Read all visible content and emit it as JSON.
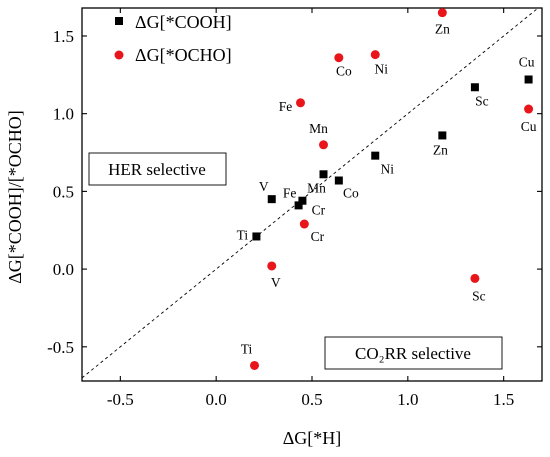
{
  "chart_data": {
    "type": "scatter",
    "xlabel": "ΔG[*H]",
    "ylabel": "ΔG[*COOH]/[*OCHO]",
    "xlim": [
      -0.7,
      1.7
    ],
    "ylim": [
      -0.72,
      1.68
    ],
    "x_ticks": [
      -0.5,
      0.0,
      0.5,
      1.0,
      1.5
    ],
    "x_tick_labels": [
      "-0.5",
      "0.0",
      "0.5",
      "1.0",
      "1.5"
    ],
    "y_ticks": [
      -0.5,
      0.0,
      0.5,
      1.0,
      1.5
    ],
    "y_tick_labels": [
      "-0.5",
      "0.0",
      "0.5",
      "1.0",
      "1.5"
    ],
    "grid": false,
    "legend_position": "top-left",
    "diagonal_reference_line": true,
    "series": [
      {
        "name": "ΔG[*COOH]",
        "marker": "square",
        "color": "#000000",
        "points": [
          {
            "label": "Ti",
            "x": 0.21,
            "y": 0.21
          },
          {
            "label": "V",
            "x": 0.29,
            "y": 0.45
          },
          {
            "label": "Cr",
            "x": 0.45,
            "y": 0.44
          },
          {
            "label": "Fe",
            "x": 0.43,
            "y": 0.41
          },
          {
            "label": "Mn",
            "x": 0.56,
            "y": 0.61
          },
          {
            "label": "Co",
            "x": 0.64,
            "y": 0.57
          },
          {
            "label": "Ni",
            "x": 0.83,
            "y": 0.73
          },
          {
            "label": "Zn",
            "x": 1.18,
            "y": 0.86
          },
          {
            "label": "Sc",
            "x": 1.35,
            "y": 1.17
          },
          {
            "label": "Cu",
            "x": 1.63,
            "y": 1.22
          }
        ]
      },
      {
        "name": "ΔG[*OCHO]",
        "marker": "circle",
        "color": "#e8161a",
        "points": [
          {
            "label": "Ti",
            "x": 0.2,
            "y": -0.62
          },
          {
            "label": "V",
            "x": 0.29,
            "y": 0.02
          },
          {
            "label": "Cr",
            "x": 0.46,
            "y": 0.29
          },
          {
            "label": "Fe",
            "x": 0.44,
            "y": 1.07
          },
          {
            "label": "Mn",
            "x": 0.56,
            "y": 0.8
          },
          {
            "label": "Co",
            "x": 0.64,
            "y": 1.36
          },
          {
            "label": "Ni",
            "x": 0.83,
            "y": 1.38
          },
          {
            "label": "Zn",
            "x": 1.18,
            "y": 1.65
          },
          {
            "label": "Sc",
            "x": 1.35,
            "y": -0.06
          },
          {
            "label": "Cu",
            "x": 1.63,
            "y": 1.03
          }
        ]
      }
    ],
    "region_labels": [
      "HER selective",
      "CO₂RR selective"
    ]
  }
}
